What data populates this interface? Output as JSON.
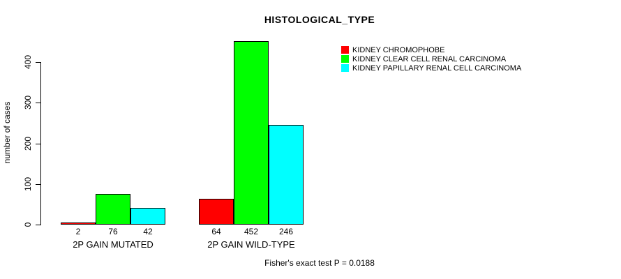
{
  "chart_data": {
    "type": "bar",
    "title": "HISTOLOGICAL_TYPE",
    "xlabel": "",
    "ylabel": "number of cases",
    "categories": [
      "2P GAIN MUTATED",
      "2P GAIN WILD-TYPE"
    ],
    "series": [
      {
        "name": "KIDNEY CHROMOPHOBE",
        "color": "#ff0000",
        "values": [
          2,
          64
        ]
      },
      {
        "name": "KIDNEY CLEAR CELL RENAL CARCINOMA",
        "color": "#00ff00",
        "values": [
          76,
          452
        ]
      },
      {
        "name": "KIDNEY PAPILLARY RENAL CELL CARCINOMA",
        "color": "#00ffff",
        "values": [
          42,
          246
        ]
      }
    ],
    "yticks": [
      0,
      100,
      200,
      300,
      400
    ],
    "ylim": [
      0,
      465
    ],
    "grid": false,
    "legend_position": "top-right",
    "bar_borders": "#000000",
    "background": "#ffffff",
    "annotation": "Fisher's exact test P = 0.0188"
  }
}
